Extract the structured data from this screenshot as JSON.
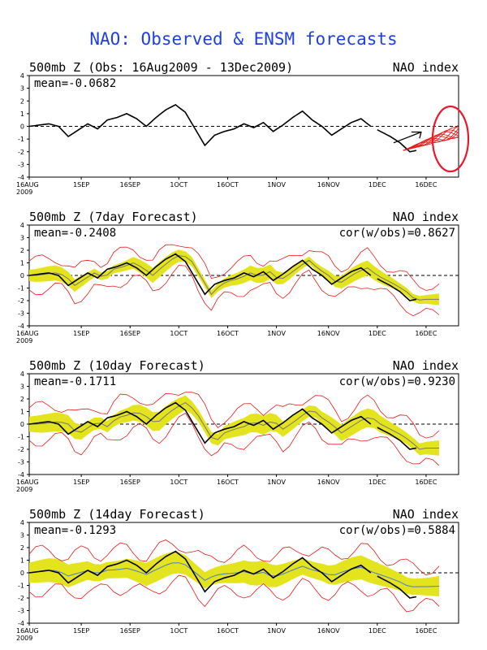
{
  "title": "NAO: Observed & ENSM forecasts",
  "annotation_color": "#e8192c",
  "shading_color": "#e3e31e",
  "member_color": "#e81a1a",
  "chart_data": [
    {
      "type": "line",
      "panel": "observed",
      "title": "500mb Z (Obs: 16Aug2009 - 13Dec2009)",
      "right_label": "NAO index",
      "mean_text": "mean=-0.0682",
      "cor_text": "",
      "ylim": [
        -4,
        4
      ],
      "y_ticks": [
        "4",
        "3",
        "2",
        "1",
        "0",
        "-1",
        "-2",
        "-3",
        "-4"
      ],
      "x_ticks": [
        "16AUG",
        "1SEP",
        "16SEP",
        "1OCT",
        "16OCT",
        "1NOV",
        "16NOV",
        "1DEC",
        "16DEC"
      ],
      "year_label": "2009",
      "observed": {
        "days": [
          0,
          3,
          6,
          9,
          12,
          15,
          18,
          21,
          24,
          27,
          30,
          33,
          36,
          39,
          42,
          45,
          48,
          51,
          54,
          57,
          60,
          63,
          66,
          69,
          72,
          75,
          78,
          81,
          84,
          87,
          90,
          93,
          96,
          99,
          102,
          105,
          108,
          111,
          114,
          117,
          119
        ],
        "values": [
          0.0,
          0.1,
          0.2,
          0.0,
          -0.8,
          -0.3,
          0.2,
          -0.2,
          0.5,
          0.7,
          1.0,
          0.6,
          0.0,
          0.7,
          1.3,
          1.7,
          1.1,
          -0.2,
          -1.5,
          -0.7,
          -0.4,
          -0.2,
          0.2,
          -0.1,
          0.3,
          -0.4,
          0.1,
          0.7,
          1.2,
          0.5,
          0.0,
          -0.7,
          -0.2,
          0.3,
          0.6,
          0.0,
          -0.4,
          -0.8,
          -1.3,
          -2.0,
          -1.9
        ]
      },
      "forecast_gap": [],
      "members": "spread",
      "shaded": false
    },
    {
      "type": "line",
      "panel": "7day",
      "title": "500mb Z (7day Forecast)",
      "right_label": "NAO index",
      "mean_text": "mean=-0.2408",
      "cor_text": "cor(w/obs)=0.8627",
      "ylim": [
        -4,
        4
      ],
      "y_ticks": [
        "4",
        "3",
        "2",
        "1",
        "0",
        "-1",
        "-2",
        "-3",
        "-4"
      ],
      "x_ticks": [
        "16AUG",
        "1SEP",
        "16SEP",
        "1OCT",
        "16OCT",
        "1NOV",
        "16NOV",
        "1DEC",
        "16DEC"
      ],
      "year_label": "2009",
      "shaded": true
    },
    {
      "type": "line",
      "panel": "10day",
      "title": "500mb Z (10day Forecast)",
      "right_label": "NAO index",
      "mean_text": "mean=-0.1711",
      "cor_text": "cor(w/obs)=0.9230",
      "ylim": [
        -4,
        4
      ],
      "y_ticks": [
        "4",
        "3",
        "2",
        "1",
        "0",
        "-1",
        "-2",
        "-3",
        "-4"
      ],
      "x_ticks": [
        "16AUG",
        "1SEP",
        "16SEP",
        "1OCT",
        "16OCT",
        "1NOV",
        "16NOV",
        "1DEC",
        "16DEC"
      ],
      "year_label": "2009",
      "shaded": true
    },
    {
      "type": "line",
      "panel": "14day",
      "title": "500mb Z (14day Forecast)",
      "right_label": "NAO index",
      "mean_text": "mean=-0.1293",
      "cor_text": "cor(w/obs)=0.5884",
      "ylim": [
        -4,
        4
      ],
      "y_ticks": [
        "4",
        "3",
        "2",
        "1",
        "0",
        "-1",
        "-2",
        "-3",
        "-4"
      ],
      "x_ticks": [
        "16AUG",
        "1SEP",
        "16SEP",
        "1OCT",
        "16OCT",
        "1NOV",
        "16NOV",
        "1DEC",
        "16DEC"
      ],
      "year_label": "2009",
      "shaded": true
    }
  ]
}
